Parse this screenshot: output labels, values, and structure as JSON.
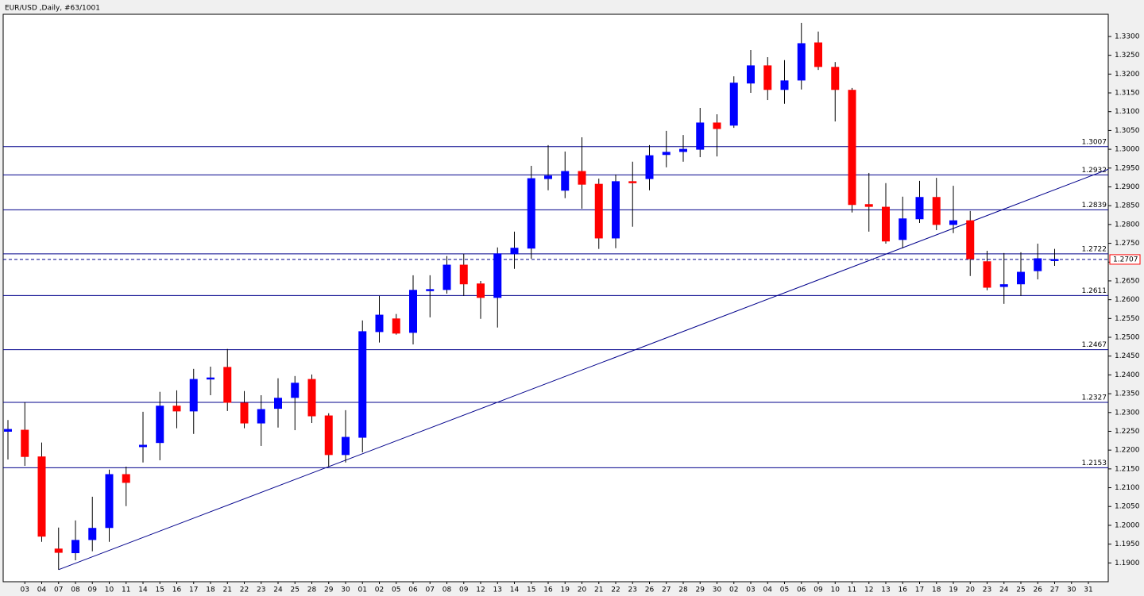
{
  "chart_data": {
    "type": "candlestick",
    "title": "EUR/USD ,Daily, #63/1001",
    "categories": [
      null,
      "03",
      "04",
      "07",
      "08",
      "09",
      "10",
      "11",
      "14",
      "15",
      "16",
      "17",
      "18",
      "21",
      "22",
      "23",
      "24",
      "25",
      "28",
      "29",
      "30",
      "01",
      "02",
      "05",
      "06",
      "07",
      "08",
      "09",
      "12",
      "13",
      "14",
      "15",
      "16",
      "19",
      "20",
      "21",
      "22",
      "23",
      "26",
      "27",
      "28",
      "29",
      "30",
      "02",
      "03",
      "04",
      "05",
      "06",
      "09",
      "10",
      "11",
      "12",
      "13",
      "16",
      "17",
      "18",
      "19",
      "20",
      "23",
      "24",
      "25",
      "26",
      "27",
      "30",
      "31"
    ],
    "open": [
      1.225,
      1.2253,
      1.2182,
      1.1937,
      1.1927,
      1.1962,
      1.1994,
      1.2135,
      1.2209,
      1.222,
      1.2317,
      1.2304,
      1.239,
      1.242,
      1.2325,
      1.2272,
      1.2311,
      1.234,
      1.2388,
      1.2291,
      1.2188,
      1.2234,
      1.2515,
      1.2549,
      1.2513,
      1.2625,
      1.2627,
      1.2692,
      1.2642,
      1.2606,
      1.2722,
      1.2737,
      1.2922,
      1.2891,
      1.2941,
      1.2907,
      1.2764,
      1.2914,
      1.2922,
      1.2986,
      1.2994,
      1.3,
      1.307,
      1.3064,
      1.3176,
      1.3222,
      1.3159,
      1.3184,
      1.3283,
      1.3218,
      1.3157,
      1.2853,
      1.2846,
      1.276,
      1.2815,
      1.2872,
      1.28,
      1.281,
      1.2701,
      1.2635,
      1.2642,
      1.2677,
      1.2707,
      null,
      null
    ],
    "high": [
      1.228,
      1.2327,
      1.222,
      1.1994,
      1.2013,
      1.2076,
      1.2148,
      1.2156,
      1.2302,
      1.2355,
      1.2359,
      1.2416,
      1.2422,
      1.2469,
      1.2357,
      1.2346,
      1.2391,
      1.2397,
      1.2401,
      1.2298,
      1.2306,
      1.2545,
      1.261,
      1.2562,
      1.2665,
      1.2665,
      1.2716,
      1.2722,
      1.265,
      1.2739,
      1.2781,
      1.2956,
      1.3011,
      1.2994,
      1.3032,
      1.2922,
      1.2933,
      1.2967,
      1.3011,
      1.3049,
      1.3038,
      1.311,
      1.3093,
      1.3194,
      1.3264,
      1.3245,
      1.3237,
      1.3336,
      1.3313,
      1.3232,
      1.3163,
      1.2937,
      1.291,
      1.2874,
      1.2916,
      1.2924,
      1.2903,
      1.2836,
      1.273,
      1.2724,
      1.2726,
      1.2749,
      1.2735,
      null,
      null
    ],
    "low": [
      1.2175,
      1.2158,
      1.1956,
      1.1882,
      1.1907,
      1.1931,
      1.1956,
      1.2051,
      1.2167,
      1.2173,
      1.2258,
      1.2243,
      1.2346,
      1.2304,
      1.2258,
      1.2211,
      1.226,
      1.2253,
      1.2272,
      1.2156,
      1.2167,
      1.2194,
      1.2486,
      1.2507,
      1.2481,
      1.2553,
      1.2616,
      1.261,
      1.2549,
      1.2526,
      1.2682,
      1.2709,
      1.2891,
      1.287,
      1.2842,
      1.2735,
      1.2737,
      1.2794,
      1.2891,
      1.2952,
      1.2967,
      1.2979,
      1.2981,
      1.3057,
      1.315,
      1.3131,
      1.3121,
      1.3159,
      1.3211,
      1.3074,
      1.2832,
      1.2781,
      1.2749,
      1.2737,
      1.2804,
      1.2785,
      1.2777,
      1.2663,
      1.2625,
      1.2589,
      1.261,
      1.2654,
      1.269,
      null,
      null
    ],
    "close": [
      1.2255,
      1.2183,
      1.1971,
      1.1928,
      1.196,
      1.1992,
      1.2135,
      1.2114,
      1.2213,
      1.2317,
      1.2304,
      1.2388,
      1.2392,
      1.2327,
      1.2272,
      1.2308,
      1.2338,
      1.2378,
      1.2291,
      1.2188,
      1.2234,
      1.2515,
      1.2559,
      1.2511,
      1.2625,
      1.2627,
      1.2692,
      1.2642,
      1.2606,
      1.2722,
      1.2737,
      1.2922,
      1.2929,
      1.2941,
      1.2907,
      1.2764,
      1.2914,
      1.2912,
      1.2983,
      1.2992,
      1.3,
      1.307,
      1.3055,
      1.3176,
      1.3222,
      1.3159,
      1.3182,
      1.3281,
      1.322,
      1.3159,
      1.2853,
      1.2848,
      1.2756,
      1.2815,
      1.2872,
      1.28,
      1.281,
      1.2709,
      1.2633,
      1.264,
      1.2673,
      1.2709,
      1.2707,
      null,
      null
    ],
    "up_color": "#0000ff",
    "down_color": "#ff0000",
    "ylim": [
      1.185,
      1.3359
    ],
    "yticks": [
      {
        "value": 1.19,
        "label": "1.1900"
      },
      {
        "value": 1.195,
        "label": "1.1950"
      },
      {
        "value": 1.2,
        "label": "1.2000"
      },
      {
        "value": 1.205,
        "label": "1.2050"
      },
      {
        "value": 1.21,
        "label": "1.2100"
      },
      {
        "value": 1.215,
        "label": "1.2150"
      },
      {
        "value": 1.22,
        "label": "1.2200"
      },
      {
        "value": 1.225,
        "label": "1.2250"
      },
      {
        "value": 1.23,
        "label": "1.2300"
      },
      {
        "value": 1.235,
        "label": "1.2350"
      },
      {
        "value": 1.24,
        "label": "1.2400"
      },
      {
        "value": 1.245,
        "label": "1.2450"
      },
      {
        "value": 1.25,
        "label": "1.2500"
      },
      {
        "value": 1.255,
        "label": "1.2550"
      },
      {
        "value": 1.26,
        "label": "1.2600"
      },
      {
        "value": 1.265,
        "label": "1.2650"
      },
      {
        "value": 1.27,
        "label": "1.2700"
      },
      {
        "value": 1.275,
        "label": "1.2750"
      },
      {
        "value": 1.28,
        "label": "1.2800"
      },
      {
        "value": 1.285,
        "label": "1.2850"
      },
      {
        "value": 1.29,
        "label": "1.2900"
      },
      {
        "value": 1.295,
        "label": "1.2950"
      },
      {
        "value": 1.3,
        "label": "1.3000"
      },
      {
        "value": 1.305,
        "label": "1.3050"
      },
      {
        "value": 1.31,
        "label": "1.3100"
      },
      {
        "value": 1.315,
        "label": "1.3150"
      },
      {
        "value": 1.32,
        "label": "1.3200"
      },
      {
        "value": 1.325,
        "label": "1.3250"
      },
      {
        "value": 1.33,
        "label": "1.3300"
      }
    ],
    "levels": {
      "color": "#00008b",
      "values": [
        1.3007,
        1.2932,
        1.2839,
        1.2722,
        1.2611,
        1.2467,
        1.2327,
        1.2153
      ],
      "value_labels": [
        "1.3007",
        "1.2932",
        "1.2839",
        "1.2722",
        "1.2611",
        "1.2467",
        "1.2327",
        "1.2153"
      ]
    },
    "current_price": {
      "value": 1.2707,
      "label": "1.2707"
    },
    "trendline": {
      "x": [
        3,
        19
      ],
      "y": [
        1.1882,
        1.2156
      ],
      "color": "#00008b"
    }
  }
}
